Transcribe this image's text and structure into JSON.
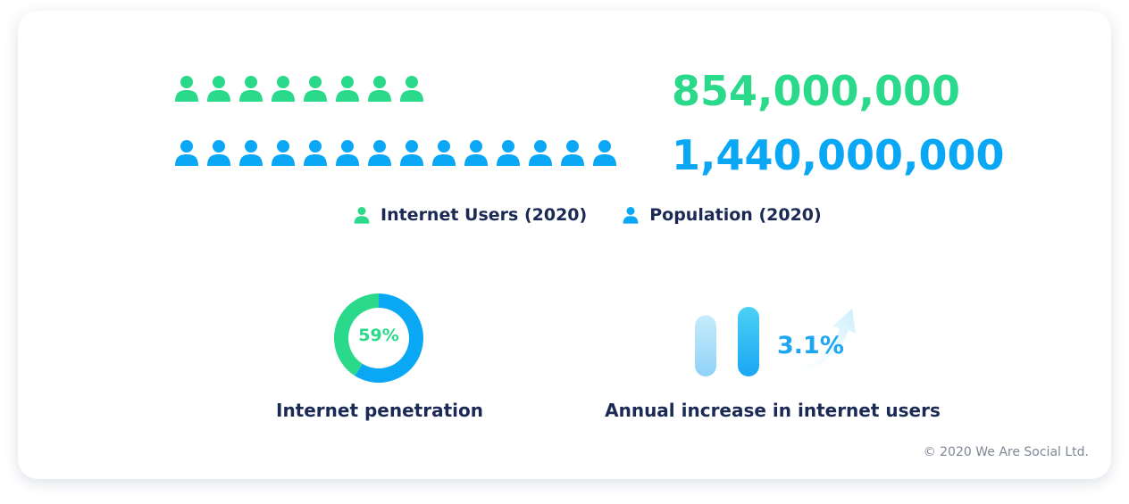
{
  "colors": {
    "users": "#2bd98b",
    "population": "#0aa7f5",
    "text": "#1b2a55"
  },
  "stats": {
    "internet_users": "854,000,000",
    "population": "1,440,000,000"
  },
  "legend": {
    "users": "Internet Users (2020)",
    "population": "Population (2020)"
  },
  "penetration": {
    "value_label": "59%",
    "caption": "Internet penetration"
  },
  "growth": {
    "value_label": "3.1%",
    "caption": "Annual increase in internet users"
  },
  "footer": {
    "copyright": "© 2020 We Are Social Ltd."
  },
  "chart_data": [
    {
      "type": "pictogram",
      "series": [
        {
          "name": "Internet Users (2020)",
          "value": 854000000,
          "icon_count": 8,
          "icon": "person-icon"
        },
        {
          "name": "Population (2020)",
          "value": 1440000000,
          "icon_count": 14,
          "icon": "person-icon"
        }
      ]
    },
    {
      "type": "pie",
      "variant": "donut",
      "slices": [
        {
          "label": "Internet users",
          "value": 59
        },
        {
          "label": "Remainder",
          "value": 41
        }
      ],
      "center_label": "59%"
    },
    {
      "type": "bar",
      "values": [
        1,
        1.031
      ],
      "value_label": "3.1%",
      "annotation": "upward-arrow-icon"
    }
  ]
}
